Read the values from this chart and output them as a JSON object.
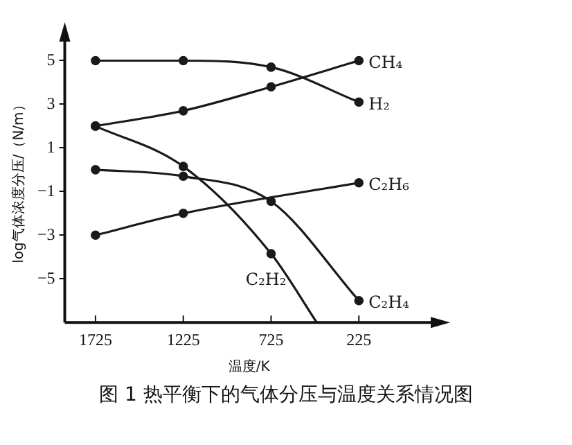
{
  "chart_data": {
    "type": "line",
    "xlabel": "温度/K",
    "ylabel": "log气体浓度分压/（N/m）",
    "annotations": [
      "图 1 热平衡下的气体分压与温度关系情况图"
    ],
    "xlim": [
      1900,
      -200
    ],
    "ylim": [
      -7,
      6
    ],
    "xticks": [
      1725,
      1225,
      725,
      225
    ],
    "yticks": [
      5,
      3,
      1,
      -1,
      -3,
      -5
    ],
    "grid": false,
    "legend": false,
    "marker": "circle",
    "line_style": "solid",
    "series": [
      {
        "name": "CH₄",
        "color": "#1a1a1a",
        "x": [
          1725,
          1225,
          725,
          225
        ],
        "values": [
          2,
          2.7,
          3.8,
          5
        ]
      },
      {
        "name": "H₂",
        "color": "#1a1a1a",
        "x": [
          1725,
          1225,
          725,
          225
        ],
        "values": [
          5,
          5,
          4.7,
          3.1
        ]
      },
      {
        "name": "C₂H₆",
        "color": "#1a1a1a",
        "x": [
          1725,
          1225,
          225
        ],
        "values": [
          -3,
          -2,
          -0.6
        ]
      },
      {
        "name": "C₂H₂",
        "color": "#1a1a1a",
        "x": [
          1725,
          1225,
          725,
          465
        ],
        "values": [
          2,
          0.15,
          -3.85,
          -7
        ]
      },
      {
        "name": "C₂H₄",
        "color": "#1a1a1a",
        "x": [
          1725,
          1225,
          725,
          225
        ],
        "values": [
          0,
          -0.3,
          -1.45,
          -6
        ]
      }
    ]
  }
}
